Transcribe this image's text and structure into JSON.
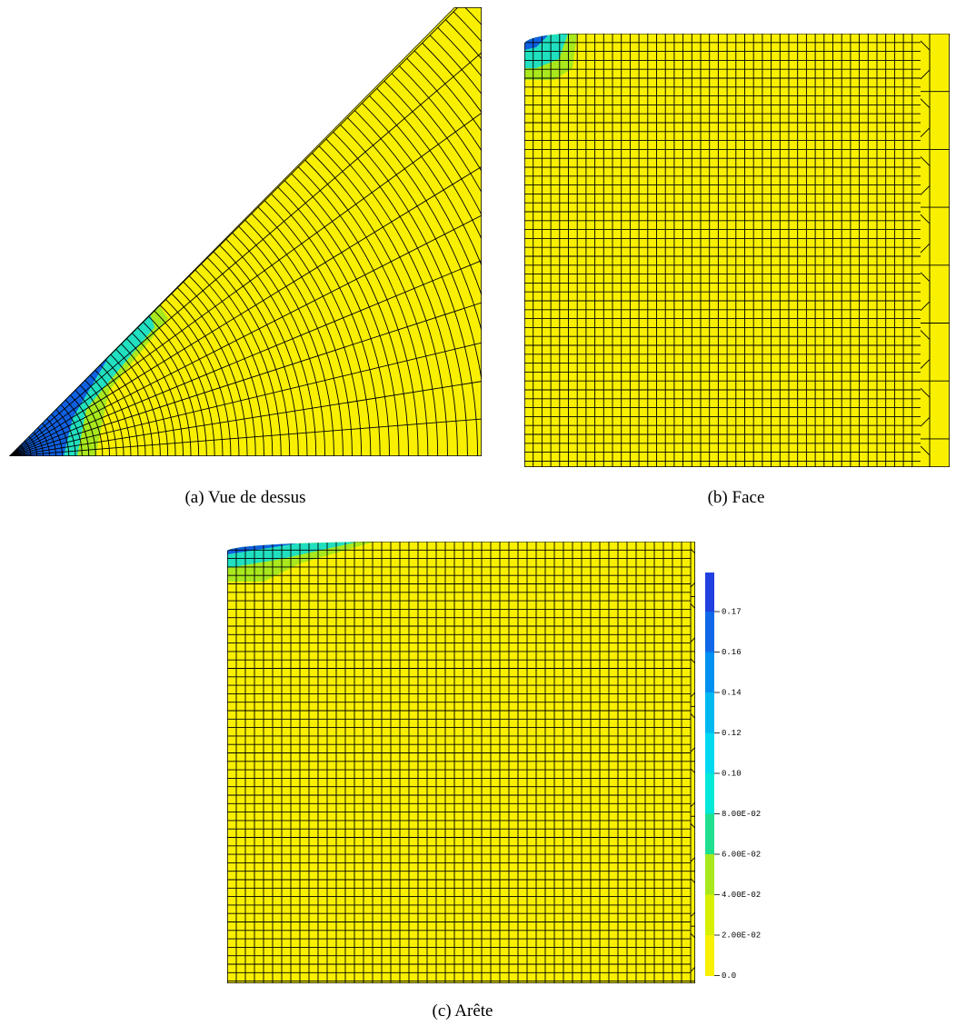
{
  "figures": [
    {
      "label": "(a)",
      "caption": "Vue de dessus"
    },
    {
      "label": "(b)",
      "caption": "Face"
    },
    {
      "label": "(c)",
      "caption": "Arête"
    }
  ],
  "colorbar": {
    "labels": [
      "0.17",
      "0.16",
      "0.14",
      "0.12",
      "0.10",
      "8.00E-02",
      "6.00E-02",
      "4.00E-02",
      "2.00E-02",
      "0.0"
    ]
  }
}
